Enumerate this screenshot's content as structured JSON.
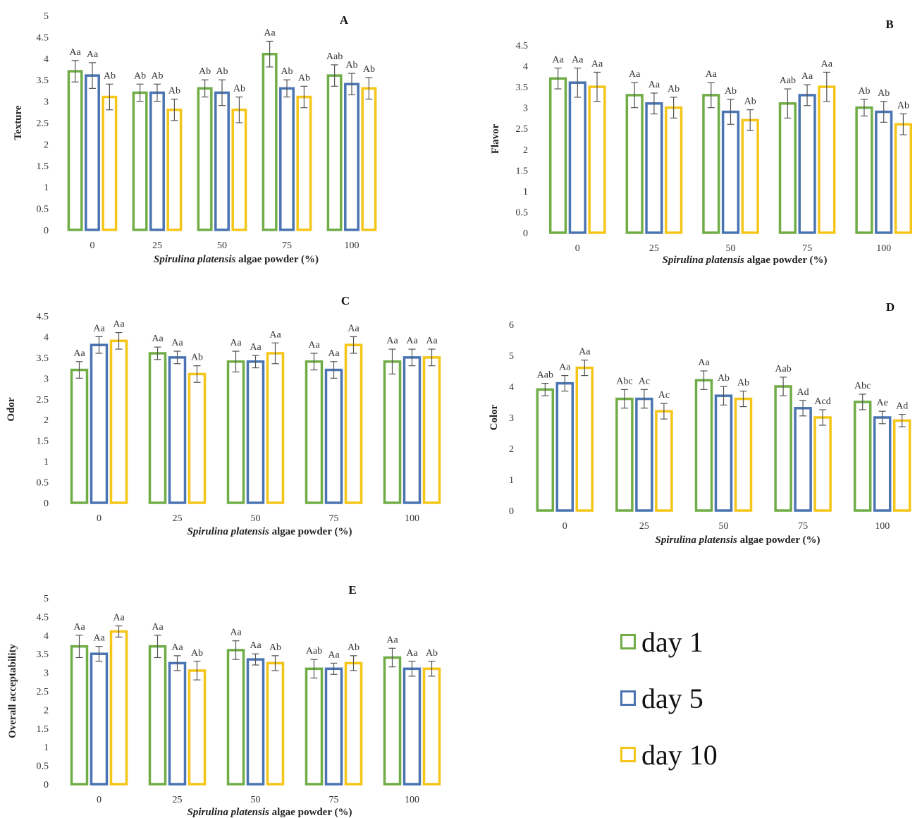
{
  "colors": {
    "day1": "#70ad47",
    "day5": "#4a74b2",
    "day10": "#f5c518",
    "error": "#555555"
  },
  "legend": [
    {
      "label": "day 1",
      "color": "#70ad47"
    },
    {
      "label": "day 5",
      "color": "#4a74b2"
    },
    {
      "label": "day 10",
      "color": "#f5c518"
    }
  ],
  "chart_data": [
    {
      "type": "bar",
      "panel": "A",
      "ylabel": "Texture",
      "xlabel_italic": "Spirulina platensis",
      "xlabel_rest": " algae powder (%)",
      "categories": [
        "0",
        "25",
        "50",
        "75",
        "100"
      ],
      "ylim": [
        0,
        5
      ],
      "yticks": [
        "0",
        "0.5",
        "1",
        "1.5",
        "2",
        "2.5",
        "3",
        "3.5",
        "4",
        "4.5",
        "5"
      ],
      "series": [
        {
          "name": "day 1",
          "values": [
            3.7,
            3.2,
            3.3,
            4.1,
            3.6
          ],
          "errors": [
            0.25,
            0.2,
            0.2,
            0.3,
            0.25
          ],
          "labels": [
            "Aa",
            "Ab",
            "Ab",
            "Aa",
            "Aab"
          ]
        },
        {
          "name": "day 5",
          "values": [
            3.6,
            3.2,
            3.2,
            3.3,
            3.4
          ],
          "errors": [
            0.3,
            0.2,
            0.3,
            0.2,
            0.25
          ],
          "labels": [
            "Aa",
            "Ab",
            "Ab",
            "Ab",
            "Ab"
          ]
        },
        {
          "name": "day 10",
          "values": [
            3.1,
            2.8,
            2.8,
            3.1,
            3.3
          ],
          "errors": [
            0.3,
            0.25,
            0.3,
            0.25,
            0.25
          ],
          "labels": [
            "Ab",
            "Ab",
            "Ab",
            "Ab",
            "Ab"
          ]
        }
      ]
    },
    {
      "type": "bar",
      "panel": "B",
      "ylabel": "Flavor",
      "xlabel_italic": "Spirulina platensis",
      "xlabel_rest": " algae powder (%)",
      "categories": [
        "0",
        "25",
        "50",
        "75",
        "100"
      ],
      "ylim": [
        0,
        4.5
      ],
      "yticks": [
        "0",
        "0.5",
        "1",
        "1.5",
        "2",
        "2.5",
        "3",
        "3.5",
        "4",
        "4.5"
      ],
      "series": [
        {
          "name": "day 1",
          "values": [
            3.7,
            3.3,
            3.3,
            3.1,
            3.0
          ],
          "errors": [
            0.25,
            0.3,
            0.3,
            0.35,
            0.2
          ],
          "labels": [
            "Aa",
            "Aa",
            "Aa",
            "Aab",
            "Ab"
          ]
        },
        {
          "name": "day 5",
          "values": [
            3.6,
            3.1,
            2.9,
            3.3,
            2.9
          ],
          "errors": [
            0.35,
            0.25,
            0.3,
            0.25,
            0.25
          ],
          "labels": [
            "Aa",
            "Aa",
            "Ab",
            "Aa",
            "Ab"
          ]
        },
        {
          "name": "day 10",
          "values": [
            3.5,
            3.0,
            2.7,
            3.5,
            2.6
          ],
          "errors": [
            0.35,
            0.25,
            0.25,
            0.35,
            0.25
          ],
          "labels": [
            "Aa",
            "Ab",
            "Ab",
            "Aa",
            "Ab"
          ]
        }
      ]
    },
    {
      "type": "bar",
      "panel": "C",
      "ylabel": "Odor",
      "xlabel_italic": "Spirulina platensis",
      "xlabel_rest": " algae powder (%)",
      "categories": [
        "0",
        "25",
        "50",
        "75",
        "100"
      ],
      "ylim": [
        0,
        4.5
      ],
      "yticks": [
        "0",
        "0.5",
        "1",
        "1.5",
        "2",
        "2.5",
        "3",
        "3.5",
        "4",
        "4.5"
      ],
      "series": [
        {
          "name": "day 1",
          "values": [
            3.2,
            3.6,
            3.4,
            3.4,
            3.4
          ],
          "errors": [
            0.2,
            0.15,
            0.25,
            0.2,
            0.3
          ],
          "labels": [
            "Aa",
            "Aa",
            "Aa",
            "Aa",
            "Aa"
          ]
        },
        {
          "name": "day 5",
          "values": [
            3.8,
            3.5,
            3.4,
            3.2,
            3.5
          ],
          "errors": [
            0.2,
            0.15,
            0.15,
            0.2,
            0.2
          ],
          "labels": [
            "Aa",
            "Aa",
            "Aa",
            "Aa",
            "Aa"
          ]
        },
        {
          "name": "day 10",
          "values": [
            3.9,
            3.1,
            3.6,
            3.8,
            3.5
          ],
          "errors": [
            0.2,
            0.2,
            0.25,
            0.2,
            0.2
          ],
          "labels": [
            "Aa",
            "Ab",
            "Aa",
            "Aa",
            "Aa"
          ]
        }
      ]
    },
    {
      "type": "bar",
      "panel": "D",
      "ylabel": "Color",
      "xlabel_italic": "Spirulina platensis",
      "xlabel_rest": " algae powder (%)",
      "categories": [
        "0",
        "25",
        "50",
        "75",
        "100"
      ],
      "ylim": [
        0,
        6
      ],
      "yticks": [
        "0",
        "1",
        "2",
        "3",
        "4",
        "5",
        "6"
      ],
      "series": [
        {
          "name": "day 1",
          "values": [
            3.9,
            3.6,
            4.2,
            4.0,
            3.5
          ],
          "errors": [
            0.2,
            0.3,
            0.3,
            0.3,
            0.25
          ],
          "labels": [
            "Aab",
            "Abc",
            "Aa",
            "Aab",
            "Abc"
          ]
        },
        {
          "name": "day 5",
          "values": [
            4.1,
            3.6,
            3.7,
            3.3,
            3.0
          ],
          "errors": [
            0.25,
            0.3,
            0.3,
            0.25,
            0.2
          ],
          "labels": [
            "Aa",
            "Ac",
            "Ab",
            "Ad",
            "Ae"
          ]
        },
        {
          "name": "day 10",
          "values": [
            4.6,
            3.2,
            3.6,
            3.0,
            2.9
          ],
          "errors": [
            0.25,
            0.25,
            0.25,
            0.25,
            0.2
          ],
          "labels": [
            "Aa",
            "Ac",
            "Ab",
            "Acd",
            "Ad"
          ]
        }
      ]
    },
    {
      "type": "bar",
      "panel": "E",
      "ylabel": "Overall acceptability",
      "xlabel_italic": "Spirulina platensis",
      "xlabel_rest": " algae powder (%)",
      "categories": [
        "0",
        "25",
        "50",
        "75",
        "100"
      ],
      "ylim": [
        0,
        5
      ],
      "yticks": [
        "0",
        "0.5",
        "1",
        "1.5",
        "2",
        "2.5",
        "3",
        "3.5",
        "4",
        "4.5",
        "5"
      ],
      "series": [
        {
          "name": "day 1",
          "values": [
            3.7,
            3.7,
            3.6,
            3.1,
            3.4
          ],
          "errors": [
            0.3,
            0.3,
            0.25,
            0.25,
            0.25
          ],
          "labels": [
            "Aa",
            "Aa",
            "Aa",
            "Aab",
            "Aa"
          ]
        },
        {
          "name": "day 5",
          "values": [
            3.5,
            3.25,
            3.35,
            3.1,
            3.1
          ],
          "errors": [
            0.2,
            0.2,
            0.15,
            0.15,
            0.2
          ],
          "labels": [
            "Aa",
            "Aa",
            "Aa",
            "Aa",
            "Aa"
          ]
        },
        {
          "name": "day 10",
          "values": [
            4.1,
            3.05,
            3.25,
            3.25,
            3.1
          ],
          "errors": [
            0.15,
            0.25,
            0.2,
            0.2,
            0.2
          ],
          "labels": [
            "Aa",
            "Ab",
            "Ab",
            "Ab",
            "Ab"
          ]
        }
      ]
    }
  ]
}
